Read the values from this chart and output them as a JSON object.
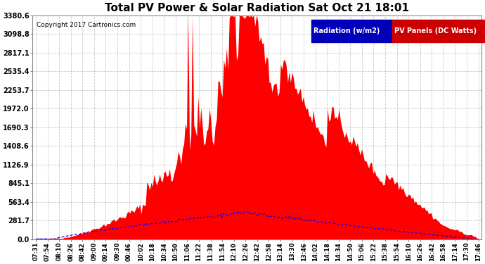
{
  "title": "Total PV Power & Solar Radiation Sat Oct 21 18:01",
  "copyright": "Copyright 2017 Cartronics.com",
  "legend_radiation": "Radiation (w/m2)",
  "legend_pv": "PV Panels (DC Watts)",
  "legend_radiation_bg": "#0000bb",
  "legend_pv_bg": "#cc0000",
  "ymax": 3380.6,
  "ymin": 0.0,
  "yticks": [
    0.0,
    281.7,
    563.4,
    845.1,
    1126.9,
    1408.6,
    1690.3,
    1972.0,
    2253.7,
    2535.4,
    2817.1,
    3098.8,
    3380.6
  ],
  "background_color": "#ffffff",
  "grid_color": "#aaaaaa",
  "pv_color": "#ff0000",
  "radiation_color": "#0000ff",
  "x_labels": [
    "07:31",
    "07:54",
    "08:10",
    "08:26",
    "08:42",
    "09:00",
    "09:14",
    "09:30",
    "09:46",
    "10:02",
    "10:18",
    "10:34",
    "10:50",
    "11:06",
    "11:22",
    "11:38",
    "11:54",
    "12:10",
    "12:26",
    "12:42",
    "12:58",
    "13:14",
    "13:30",
    "13:46",
    "14:02",
    "14:18",
    "14:34",
    "14:50",
    "15:06",
    "15:22",
    "15:38",
    "15:54",
    "16:10",
    "16:26",
    "16:42",
    "16:58",
    "17:14",
    "17:30",
    "17:46"
  ],
  "fig_width": 6.9,
  "fig_height": 3.75,
  "dpi": 100
}
